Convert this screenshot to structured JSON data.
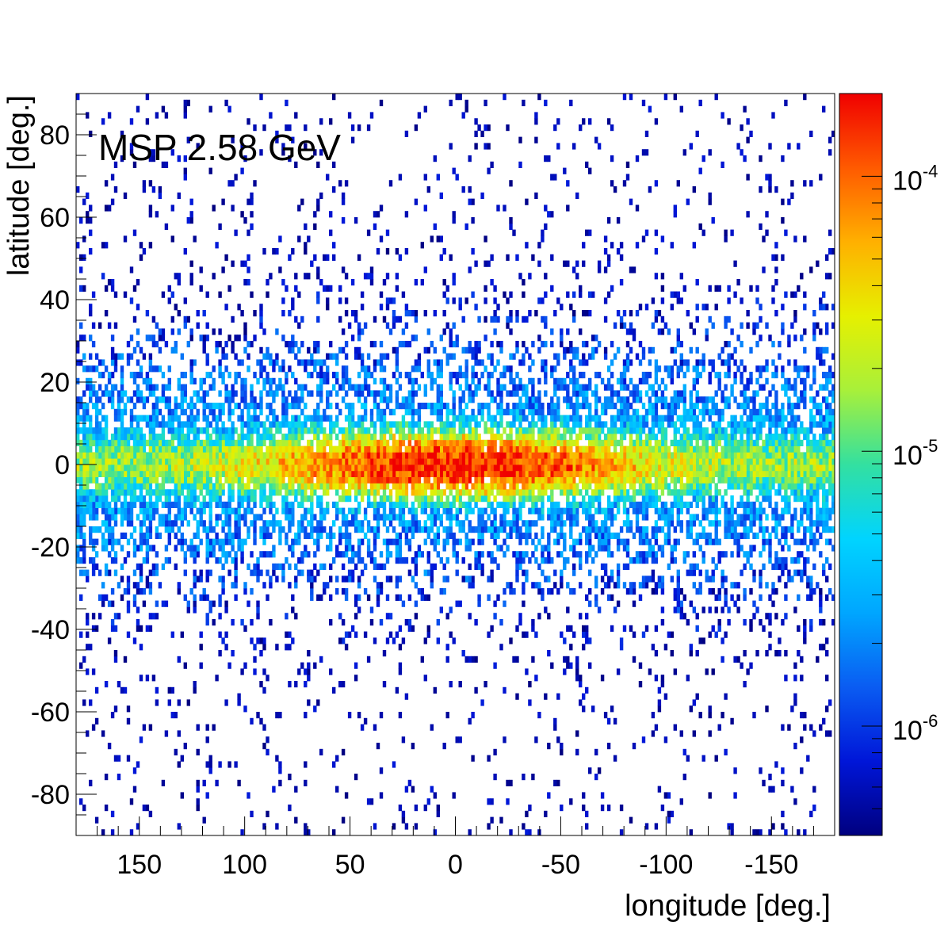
{
  "chart_data": {
    "type": "heatmap",
    "title": "MSP 2.58 GeV",
    "xlabel": "longitude [deg.]",
    "ylabel": "latitude [deg.]",
    "xlim": [
      180,
      -180
    ],
    "ylim": [
      -90,
      90
    ],
    "x_ticks": [
      150,
      100,
      50,
      0,
      -50,
      -100,
      -150
    ],
    "y_ticks": [
      80,
      60,
      40,
      20,
      0,
      -20,
      -40,
      -60,
      -80
    ],
    "x_tick_labels": [
      "150",
      "100",
      "50",
      "0",
      "-50",
      "-100",
      "-150"
    ],
    "y_tick_labels": [
      "80",
      "60",
      "40",
      "20",
      "0",
      "-20",
      "-40",
      "-60",
      "-80"
    ],
    "colorbar": {
      "scale": "log",
      "range": [
        4e-07,
        0.0002
      ],
      "ticks": [
        1e-06,
        1e-05,
        0.0001
      ],
      "tick_labels": [
        {
          "base": "10",
          "exp": "-6"
        },
        {
          "base": "10",
          "exp": "-5"
        },
        {
          "base": "10",
          "exp": "-4"
        }
      ]
    },
    "colormap": [
      "#00007f",
      "#0016d8",
      "#0a5cf2",
      "#00a6ff",
      "#00d4ff",
      "#33e0a0",
      "#a8f03a",
      "#e6f000",
      "#ffb000",
      "#ff5a00",
      "#f00000"
    ],
    "bin_size_deg": 1.5,
    "features": {
      "galactic_plane_peak": 0.00018,
      "disk_latitude_width_deg": 3.5,
      "halo_latitude_width_deg": 18,
      "inner_bulge_longitude_width_deg": 45
    }
  }
}
